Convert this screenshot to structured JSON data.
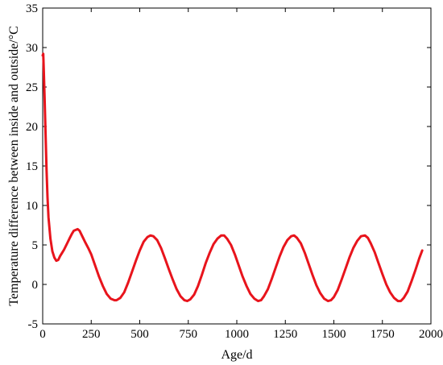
{
  "chart_data": {
    "type": "line",
    "xlabel": "Age/d",
    "ylabel": "Temperature difference between inside and outside/°C",
    "xlim": [
      0,
      2000
    ],
    "ylim": [
      -5,
      35
    ],
    "xticks": [
      "0",
      "250",
      "500",
      "750",
      "1000",
      "1250",
      "1500",
      "1750",
      "2000"
    ],
    "yticks": [
      "-5",
      "0",
      "5",
      "10",
      "15",
      "20",
      "25",
      "30",
      "35"
    ],
    "grid": false,
    "legend": "none",
    "series": [
      {
        "color": "#e8141c",
        "x": [
          0,
          3,
          6,
          10,
          15,
          20,
          25,
          30,
          40,
          50,
          60,
          70,
          80,
          90,
          100,
          110,
          120,
          130,
          140,
          150,
          160,
          170,
          180,
          190,
          200,
          210,
          220,
          235,
          250,
          270,
          290,
          310,
          330,
          350,
          370,
          380,
          400,
          420,
          440,
          460,
          480,
          500,
          520,
          540,
          555,
          570,
          590,
          610,
          630,
          650,
          670,
          690,
          710,
          730,
          745,
          760,
          780,
          800,
          820,
          840,
          860,
          880,
          900,
          920,
          935,
          950,
          970,
          990,
          1010,
          1030,
          1050,
          1070,
          1090,
          1110,
          1125,
          1140,
          1160,
          1180,
          1200,
          1220,
          1240,
          1260,
          1280,
          1295,
          1310,
          1330,
          1350,
          1370,
          1390,
          1410,
          1430,
          1450,
          1470,
          1485,
          1500,
          1520,
          1540,
          1560,
          1580,
          1600,
          1620,
          1640,
          1660,
          1675,
          1690,
          1710,
          1730,
          1750,
          1770,
          1790,
          1810,
          1830,
          1845,
          1860,
          1880,
          1900,
          1920,
          1940,
          1955
        ],
        "values": [
          29.0,
          29.2,
          27.0,
          23.5,
          19.0,
          14.5,
          11.0,
          8.5,
          5.8,
          4.2,
          3.4,
          3.0,
          3.1,
          3.6,
          4.0,
          4.4,
          4.9,
          5.4,
          5.9,
          6.4,
          6.8,
          6.9,
          7.0,
          6.8,
          6.3,
          5.8,
          5.3,
          4.6,
          3.8,
          2.4,
          1.0,
          -0.2,
          -1.2,
          -1.8,
          -2.0,
          -2.0,
          -1.7,
          -1.0,
          0.2,
          1.6,
          3.0,
          4.3,
          5.4,
          6.0,
          6.2,
          6.1,
          5.6,
          4.6,
          3.3,
          1.9,
          0.6,
          -0.6,
          -1.5,
          -2.0,
          -2.1,
          -1.9,
          -1.3,
          -0.2,
          1.2,
          2.7,
          4.0,
          5.1,
          5.8,
          6.2,
          6.2,
          5.8,
          5.0,
          3.8,
          2.4,
          1.0,
          -0.2,
          -1.2,
          -1.8,
          -2.1,
          -2.0,
          -1.5,
          -0.6,
          0.7,
          2.1,
          3.5,
          4.7,
          5.6,
          6.1,
          6.2,
          5.9,
          5.2,
          4.0,
          2.6,
          1.2,
          -0.1,
          -1.1,
          -1.8,
          -2.1,
          -2.0,
          -1.6,
          -0.7,
          0.6,
          2.0,
          3.4,
          4.6,
          5.5,
          6.1,
          6.2,
          5.9,
          5.2,
          4.1,
          2.7,
          1.3,
          0.0,
          -1.0,
          -1.7,
          -2.1,
          -2.1,
          -1.7,
          -0.9,
          0.4,
          1.8,
          3.3,
          4.3
        ]
      }
    ]
  }
}
